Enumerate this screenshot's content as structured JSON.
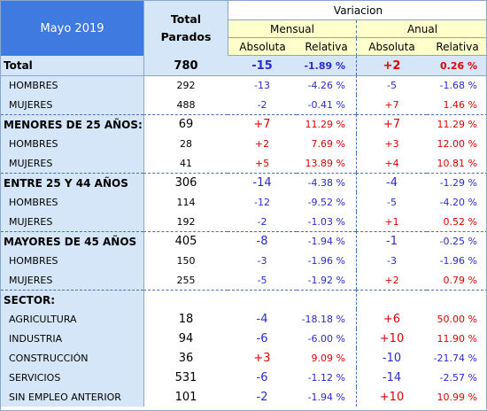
{
  "header": {
    "period": "Mayo 2019",
    "total_label": "Total\nParados",
    "variacion": "Variacion",
    "mensual": "Mensual",
    "anual": "Anual",
    "absoluta": "Absoluta",
    "relativa": "Relativa"
  },
  "rows": [
    {
      "label": "Total",
      "total": "780",
      "m_abs": "-15",
      "m_rel": "-1.89 %",
      "a_abs": "+2",
      "a_rel": "0.26 %"
    },
    {
      "label": "HOMBRES",
      "total": "292",
      "m_abs": "-13",
      "m_rel": "-4.26 %",
      "a_abs": "-5",
      "a_rel": "-1.68 %"
    },
    {
      "label": "MUJERES",
      "total": "488",
      "m_abs": "-2",
      "m_rel": "-0.41 %",
      "a_abs": "+7",
      "a_rel": "1.46 %"
    },
    {
      "label": "MENORES DE 25 AÑOS:",
      "total": "69",
      "m_abs": "+7",
      "m_rel": "11.29 %",
      "a_abs": "+7",
      "a_rel": "11.29 %"
    },
    {
      "label": "HOMBRES",
      "total": "28",
      "m_abs": "+2",
      "m_rel": "7.69 %",
      "a_abs": "+3",
      "a_rel": "12.00 %"
    },
    {
      "label": "MUJERES",
      "total": "41",
      "m_abs": "+5",
      "m_rel": "13.89 %",
      "a_abs": "+4",
      "a_rel": "10.81 %"
    },
    {
      "label": "ENTRE 25 Y 44 AÑOS",
      "total": "306",
      "m_abs": "-14",
      "m_rel": "-4.38 %",
      "a_abs": "-4",
      "a_rel": "-1.29 %"
    },
    {
      "label": "HOMBRES",
      "total": "114",
      "m_abs": "-12",
      "m_rel": "-9.52 %",
      "a_abs": "-5",
      "a_rel": "-4.20 %"
    },
    {
      "label": "MUJERES",
      "total": "192",
      "m_abs": "-2",
      "m_rel": "-1.03 %",
      "a_abs": "+1",
      "a_rel": "0.52 %"
    },
    {
      "label": "MAYORES DE 45 AÑOS",
      "total": "405",
      "m_abs": "-8",
      "m_rel": "-1.94 %",
      "a_abs": "-1",
      "a_rel": "-0.25 %"
    },
    {
      "label": "HOMBRES",
      "total": "150",
      "m_abs": "-3",
      "m_rel": "-1.96 %",
      "a_abs": "-3",
      "a_rel": "-1.96 %"
    },
    {
      "label": "MUJERES",
      "total": "255",
      "m_abs": "-5",
      "m_rel": "-1.92 %",
      "a_abs": "+2",
      "a_rel": "0.79 %"
    },
    {
      "label": "SECTOR:",
      "total": "",
      "m_abs": "",
      "m_rel": "",
      "a_abs": "",
      "a_rel": ""
    },
    {
      "label": "AGRICULTURA",
      "total": "18",
      "m_abs": "-4",
      "m_rel": "-18.18 %",
      "a_abs": "+6",
      "a_rel": "50.00 %"
    },
    {
      "label": "INDUSTRIA",
      "total": "94",
      "m_abs": "-6",
      "m_rel": "-6.00 %",
      "a_abs": "+10",
      "a_rel": "11.90 %"
    },
    {
      "label": "CONSTRUCCIÓN",
      "total": "36",
      "m_abs": "+3",
      "m_rel": "9.09 %",
      "a_abs": "-10",
      "a_rel": "-21.74 %"
    },
    {
      "label": "SERVICIOS",
      "total": "531",
      "m_abs": "-6",
      "m_rel": "-1.12 %",
      "a_abs": "-14",
      "a_rel": "-2.57 %"
    },
    {
      "label": "SIN EMPLEO ANTERIOR",
      "total": "101",
      "m_abs": "-2",
      "m_rel": "-1.94 %",
      "a_abs": "+10",
      "a_rel": "10.99 %"
    }
  ],
  "colors": {
    "negative": "#2a2ad0",
    "positive": "#e00000",
    "header_blue": "#3f7ae0",
    "label_bg": "#d5e6f8",
    "subheader_bg": "#ffffcc"
  }
}
